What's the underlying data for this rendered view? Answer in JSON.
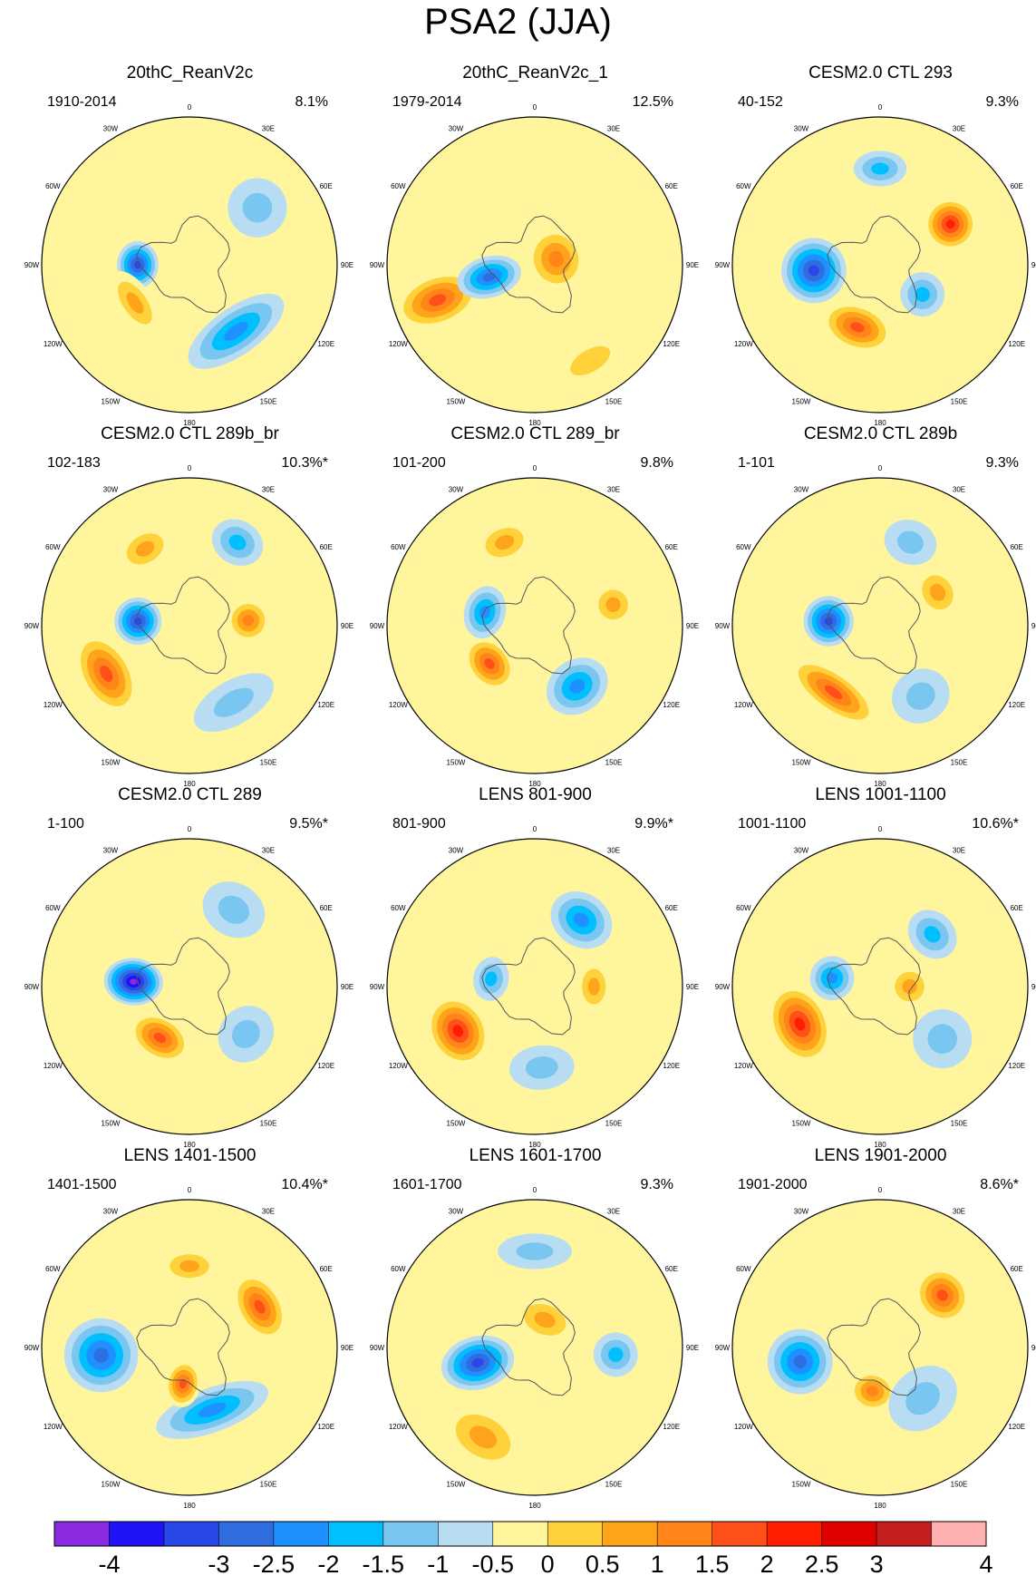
{
  "chart_data": {
    "type": "contour-map-grid",
    "title": "PSA2 (JJA)",
    "projection": "south polar stereographic",
    "longitude_labels": [
      "0",
      "30E",
      "60E",
      "90E",
      "120E",
      "150E",
      "180",
      "150W",
      "120W",
      "90W",
      "60W",
      "30W"
    ],
    "panels": [
      {
        "title": "20thC_ReanV2c",
        "period": "1910-2014",
        "variance": "8.1%",
        "blobs": [
          {
            "lon": -90,
            "r": 0.35,
            "v": -3,
            "sx": 0.16,
            "sy": 0.14
          },
          {
            "lon": -125,
            "r": 0.45,
            "v": 1.5,
            "sx": 0.25,
            "sy": 0.12
          },
          {
            "lon": 145,
            "r": 0.55,
            "v": -2,
            "sx": 0.38,
            "sy": 0.16
          },
          {
            "lon": 50,
            "r": 0.6,
            "v": -1,
            "sx": 0.2,
            "sy": 0.2
          }
        ]
      },
      {
        "title": "20thC_ReanV2c_1",
        "period": "1979-2014",
        "variance": "12.5%",
        "blobs": [
          {
            "lon": -110,
            "r": 0.7,
            "v": 2.5,
            "sx": 0.18,
            "sy": 0.3
          },
          {
            "lon": -105,
            "r": 0.32,
            "v": -2.5,
            "sx": 0.14,
            "sy": 0.22
          },
          {
            "lon": 75,
            "r": 0.15,
            "v": 2,
            "sx": 0.22,
            "sy": 0.2
          },
          {
            "lon": 150,
            "r": 0.75,
            "v": 1,
            "sx": 0.3,
            "sy": 0.15
          }
        ]
      },
      {
        "title": "CESM2.0 CTL 293",
        "period": "40-152",
        "variance": "9.3%",
        "blobs": [
          {
            "lon": -95,
            "r": 0.45,
            "v": -3,
            "sx": 0.22,
            "sy": 0.22
          },
          {
            "lon": -160,
            "r": 0.45,
            "v": 2.5,
            "sx": 0.25,
            "sy": 0.16
          },
          {
            "lon": 60,
            "r": 0.55,
            "v": 3,
            "sx": 0.18,
            "sy": 0.18
          },
          {
            "lon": 125,
            "r": 0.35,
            "v": -1.5,
            "sx": 0.15,
            "sy": 0.15
          },
          {
            "lon": 0,
            "r": 0.65,
            "v": -1.5,
            "sx": 0.18,
            "sy": 0.12
          }
        ]
      },
      {
        "title": "CESM2.0 CTL 289b_br",
        "period": "102-183",
        "variance": "10.3%*",
        "blobs": [
          {
            "lon": -85,
            "r": 0.35,
            "v": -3,
            "sx": 0.16,
            "sy": 0.16
          },
          {
            "lon": -120,
            "r": 0.65,
            "v": 2.5,
            "sx": 0.3,
            "sy": 0.18
          },
          {
            "lon": -30,
            "r": 0.6,
            "v": 1.5,
            "sx": 0.2,
            "sy": 0.14
          },
          {
            "lon": 30,
            "r": 0.65,
            "v": -1.5,
            "sx": 0.18,
            "sy": 0.15
          },
          {
            "lon": 85,
            "r": 0.4,
            "v": 2,
            "sx": 0.15,
            "sy": 0.15
          },
          {
            "lon": 150,
            "r": 0.6,
            "v": -1,
            "sx": 0.3,
            "sy": 0.15
          }
        ]
      },
      {
        "title": "CESM2.0 CTL 289_br",
        "period": "101-200",
        "variance": "9.8%",
        "blobs": [
          {
            "lon": -130,
            "r": 0.4,
            "v": 2.5,
            "sx": 0.2,
            "sy": 0.15
          },
          {
            "lon": -75,
            "r": 0.35,
            "v": -2,
            "sx": 0.18,
            "sy": 0.14
          },
          {
            "lon": -20,
            "r": 0.6,
            "v": 1.5,
            "sx": 0.2,
            "sy": 0.14
          },
          {
            "lon": 145,
            "r": 0.5,
            "v": -2,
            "sx": 0.22,
            "sy": 0.18
          },
          {
            "lon": 75,
            "r": 0.55,
            "v": 1.5,
            "sx": 0.15,
            "sy": 0.15
          }
        ]
      },
      {
        "title": "CESM2.0 CTL 289b",
        "period": "1-101",
        "variance": "9.3%",
        "blobs": [
          {
            "lon": -85,
            "r": 0.35,
            "v": -3,
            "sx": 0.17,
            "sy": 0.17
          },
          {
            "lon": -145,
            "r": 0.55,
            "v": 2.5,
            "sx": 0.35,
            "sy": 0.14
          },
          {
            "lon": 60,
            "r": 0.45,
            "v": 1.5,
            "sx": 0.18,
            "sy": 0.15
          },
          {
            "lon": 20,
            "r": 0.6,
            "v": -1,
            "sx": 0.18,
            "sy": 0.15
          },
          {
            "lon": 150,
            "r": 0.55,
            "v": -1,
            "sx": 0.2,
            "sy": 0.18
          }
        ]
      },
      {
        "title": "CESM2.0 CTL 289",
        "period": "1-100",
        "variance": "9.5%*",
        "blobs": [
          {
            "lon": -85,
            "r": 0.38,
            "v": -4,
            "sx": 0.16,
            "sy": 0.2
          },
          {
            "lon": -150,
            "r": 0.4,
            "v": 2.5,
            "sx": 0.22,
            "sy": 0.15
          },
          {
            "lon": 130,
            "r": 0.5,
            "v": -1,
            "sx": 0.2,
            "sy": 0.18
          },
          {
            "lon": 30,
            "r": 0.6,
            "v": -1,
            "sx": 0.22,
            "sy": 0.18
          }
        ]
      },
      {
        "title": "LENS 801-900",
        "period": "801-900",
        "variance": "9.9%*",
        "blobs": [
          {
            "lon": -120,
            "r": 0.6,
            "v": 3,
            "sx": 0.25,
            "sy": 0.2
          },
          {
            "lon": -80,
            "r": 0.3,
            "v": -1.5,
            "sx": 0.15,
            "sy": 0.12
          },
          {
            "lon": 35,
            "r": 0.55,
            "v": -2,
            "sx": 0.22,
            "sy": 0.18
          },
          {
            "lon": 90,
            "r": 0.4,
            "v": 1.5,
            "sx": 0.18,
            "sy": 0.12
          },
          {
            "lon": 175,
            "r": 0.55,
            "v": -1,
            "sx": 0.22,
            "sy": 0.15
          }
        ]
      },
      {
        "title": "LENS 1001-1100",
        "period": "1001-1100",
        "variance": "10.6%*",
        "blobs": [
          {
            "lon": -115,
            "r": 0.6,
            "v": 3,
            "sx": 0.28,
            "sy": 0.2
          },
          {
            "lon": -80,
            "r": 0.33,
            "v": -2,
            "sx": 0.15,
            "sy": 0.15
          },
          {
            "lon": 45,
            "r": 0.5,
            "v": -1.5,
            "sx": 0.18,
            "sy": 0.15
          },
          {
            "lon": 130,
            "r": 0.55,
            "v": -1,
            "sx": 0.2,
            "sy": 0.2
          },
          {
            "lon": 90,
            "r": 0.2,
            "v": 1.5,
            "sx": 0.15,
            "sy": 0.15
          }
        ]
      },
      {
        "title": "LENS 1401-1500",
        "period": "1401-1500",
        "variance": "10.4%*",
        "blobs": [
          {
            "lon": -95,
            "r": 0.6,
            "v": -2.5,
            "sx": 0.25,
            "sy": 0.25
          },
          {
            "lon": 160,
            "r": 0.45,
            "v": -2,
            "sx": 0.4,
            "sy": 0.15
          },
          {
            "lon": 60,
            "r": 0.55,
            "v": 2.5,
            "sx": 0.25,
            "sy": 0.16
          },
          {
            "lon": 0,
            "r": 0.55,
            "v": 1.5,
            "sx": 0.2,
            "sy": 0.12
          },
          {
            "lon": -170,
            "r": 0.25,
            "v": 2.5,
            "sx": 0.12,
            "sy": 0.16
          }
        ]
      },
      {
        "title": "LENS 1601-1700",
        "period": "1601-1700",
        "variance": "9.3%",
        "blobs": [
          {
            "lon": -105,
            "r": 0.4,
            "v": -3,
            "sx": 0.18,
            "sy": 0.25
          },
          {
            "lon": -150,
            "r": 0.7,
            "v": 1.5,
            "sx": 0.3,
            "sy": 0.2
          },
          {
            "lon": 95,
            "r": 0.55,
            "v": -1.5,
            "sx": 0.15,
            "sy": 0.15
          },
          {
            "lon": 0,
            "r": 0.65,
            "v": -1,
            "sx": 0.25,
            "sy": 0.12
          },
          {
            "lon": 20,
            "r": 0.2,
            "v": 1.5,
            "sx": 0.22,
            "sy": 0.15
          }
        ]
      },
      {
        "title": "LENS 1901-2000",
        "period": "1901-2000",
        "variance": "8.6%*",
        "blobs": [
          {
            "lon": -100,
            "r": 0.55,
            "v": -2.5,
            "sx": 0.22,
            "sy": 0.22
          },
          {
            "lon": 50,
            "r": 0.55,
            "v": 2.5,
            "sx": 0.2,
            "sy": 0.18
          },
          {
            "lon": -170,
            "r": 0.3,
            "v": 2,
            "sx": 0.16,
            "sy": 0.14
          },
          {
            "lon": 140,
            "r": 0.45,
            "v": -1,
            "sx": 0.25,
            "sy": 0.2
          }
        ]
      }
    ],
    "colorbar": {
      "levels": [
        -4,
        -3.5,
        -3,
        -2.5,
        -2,
        -1.5,
        -1,
        -0.5,
        0,
        0.5,
        1,
        1.5,
        2,
        2.5,
        3,
        3.5,
        4
      ],
      "tick_labels": [
        "-4",
        "-3",
        "-2.5",
        "-2",
        "-1.5",
        "-1",
        "-0.5",
        "0",
        "0.5",
        "1",
        "1.5",
        "2",
        "2.5",
        "3",
        "4"
      ],
      "colors": [
        "#8a2be2",
        "#1f12f5",
        "#2a47e8",
        "#306ee0",
        "#1e90ff",
        "#00bfff",
        "#79c6f0",
        "#b8dcf2",
        "#fff59d",
        "#ffd23c",
        "#ffa31a",
        "#ff8519",
        "#ff5019",
        "#ff1f00",
        "#e00000",
        "#c41e1e",
        "#ffb0b0"
      ]
    }
  }
}
